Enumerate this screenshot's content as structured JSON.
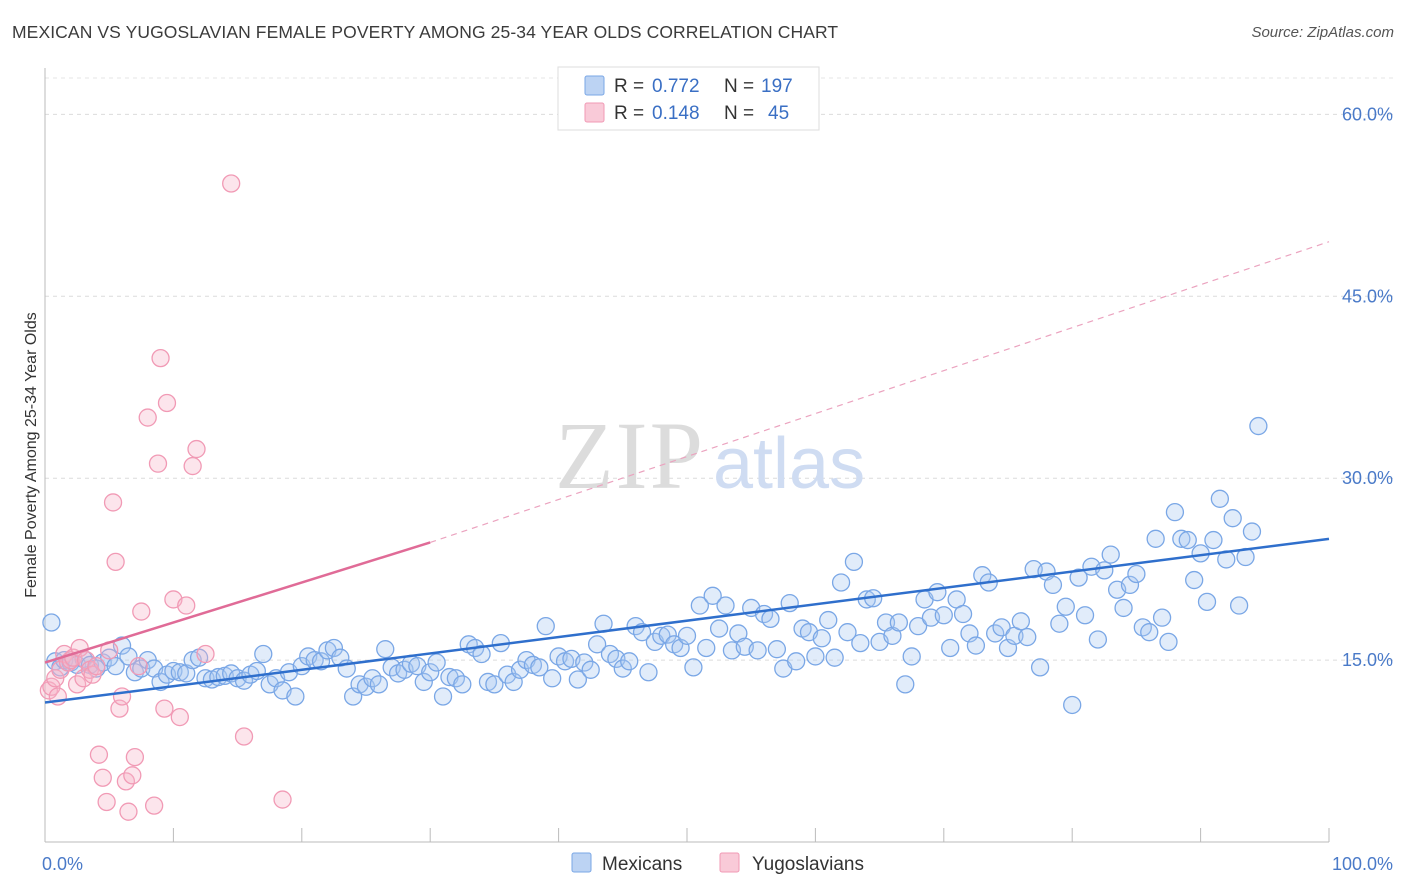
{
  "header": {
    "title": "MEXICAN VS YUGOSLAVIAN FEMALE POVERTY AMONG 25-34 YEAR OLDS CORRELATION CHART",
    "source": "Source: ZipAtlas.com"
  },
  "watermark": {
    "zip": "ZIP",
    "atlas": "atlas"
  },
  "legend": {
    "rows": [
      {
        "r_label": "R =",
        "r_value": "0.772",
        "n_label": "N =",
        "n_value": "197",
        "color": "#7aa7e6"
      },
      {
        "r_label": "R =",
        "r_value": "0.148",
        "n_label": "N =",
        "n_value": "45",
        "color": "#f19ab5"
      }
    ]
  },
  "bottom_legend": {
    "items": [
      {
        "label": "Mexicans",
        "color": "#7aa7e6"
      },
      {
        "label": "Yugoslavians",
        "color": "#f19ab5"
      }
    ]
  },
  "chart_data": {
    "type": "scatter",
    "title": "MEXICAN VS YUGOSLAVIAN FEMALE POVERTY AMONG 25-34 YEAR OLDS CORRELATION CHART",
    "xlabel": "",
    "ylabel": "Female Poverty Among 25-34 Year Olds",
    "xlim": [
      0,
      100
    ],
    "ylim": [
      0,
      63
    ],
    "x_tick_labels": [
      "0.0%",
      "100.0%"
    ],
    "y_ticks": [
      15,
      30,
      45,
      60
    ],
    "y_tick_labels": [
      "15.0%",
      "30.0%",
      "45.0%",
      "60.0%"
    ],
    "grid": true,
    "legend_placement": "top-center",
    "series": [
      {
        "name": "Mexicans",
        "color": "#7aa7e6",
        "r": 0.772,
        "n": 197,
        "trend": {
          "x": [
            0,
            100
          ],
          "y": [
            11.5,
            25.0
          ]
        },
        "points": [
          [
            0.5,
            18.1
          ],
          [
            0.8,
            14.9
          ],
          [
            1.2,
            14.4
          ],
          [
            1.5,
            15.0
          ],
          [
            2.0,
            14.8
          ],
          [
            2.5,
            14.6
          ],
          [
            3.0,
            15.1
          ],
          [
            3.5,
            14.6
          ],
          [
            4.0,
            14.3
          ],
          [
            4.5,
            14.8
          ],
          [
            5.0,
            15.2
          ],
          [
            5.5,
            14.5
          ],
          [
            6.0,
            16.2
          ],
          [
            6.5,
            15.3
          ],
          [
            7.0,
            14.0
          ],
          [
            7.5,
            14.3
          ],
          [
            8.0,
            15.0
          ],
          [
            8.5,
            14.3
          ],
          [
            9.0,
            13.2
          ],
          [
            9.5,
            13.8
          ],
          [
            10.0,
            14.1
          ],
          [
            10.5,
            14.0
          ],
          [
            11.0,
            13.9
          ],
          [
            11.5,
            15.0
          ],
          [
            12.0,
            15.2
          ],
          [
            12.5,
            13.5
          ],
          [
            13.0,
            13.4
          ],
          [
            13.5,
            13.6
          ],
          [
            14.0,
            13.7
          ],
          [
            14.5,
            13.9
          ],
          [
            15.0,
            13.5
          ],
          [
            15.5,
            13.3
          ],
          [
            16.0,
            13.8
          ],
          [
            16.5,
            14.1
          ],
          [
            17.0,
            15.5
          ],
          [
            17.5,
            13.0
          ],
          [
            18.0,
            13.5
          ],
          [
            18.5,
            12.5
          ],
          [
            19.0,
            14.0
          ],
          [
            19.5,
            12.0
          ],
          [
            20.0,
            14.5
          ],
          [
            20.5,
            15.3
          ],
          [
            21.0,
            15.0
          ],
          [
            21.5,
            14.9
          ],
          [
            22.0,
            15.8
          ],
          [
            22.5,
            16.0
          ],
          [
            23.0,
            15.2
          ],
          [
            23.5,
            14.3
          ],
          [
            24.0,
            12.0
          ],
          [
            24.5,
            13.0
          ],
          [
            25.0,
            12.8
          ],
          [
            25.5,
            13.5
          ],
          [
            26.0,
            13.0
          ],
          [
            26.5,
            15.9
          ],
          [
            27.0,
            14.4
          ],
          [
            27.5,
            13.9
          ],
          [
            28.0,
            14.2
          ],
          [
            28.5,
            14.7
          ],
          [
            29.0,
            14.5
          ],
          [
            29.5,
            13.2
          ],
          [
            30.0,
            14.0
          ],
          [
            30.5,
            14.8
          ],
          [
            31.0,
            12.0
          ],
          [
            31.5,
            13.6
          ],
          [
            32.0,
            13.5
          ],
          [
            32.5,
            13.0
          ],
          [
            33.0,
            16.3
          ],
          [
            33.5,
            16.0
          ],
          [
            34.0,
            15.5
          ],
          [
            34.5,
            13.2
          ],
          [
            35.0,
            13.0
          ],
          [
            35.5,
            16.4
          ],
          [
            36.0,
            13.8
          ],
          [
            36.5,
            13.2
          ],
          [
            37.0,
            14.2
          ],
          [
            37.5,
            15.0
          ],
          [
            38.0,
            14.6
          ],
          [
            38.5,
            14.4
          ],
          [
            39.0,
            17.8
          ],
          [
            39.5,
            13.5
          ],
          [
            40.0,
            15.3
          ],
          [
            40.5,
            14.9
          ],
          [
            41.0,
            15.1
          ],
          [
            41.5,
            13.4
          ],
          [
            42.0,
            14.8
          ],
          [
            42.5,
            14.2
          ],
          [
            43.0,
            16.3
          ],
          [
            43.5,
            18.0
          ],
          [
            44.0,
            15.5
          ],
          [
            44.5,
            15.1
          ],
          [
            45.0,
            14.3
          ],
          [
            45.5,
            14.9
          ],
          [
            46.0,
            17.8
          ],
          [
            46.5,
            17.3
          ],
          [
            47.0,
            14.0
          ],
          [
            47.5,
            16.5
          ],
          [
            48.0,
            17.0
          ],
          [
            48.5,
            17.1
          ],
          [
            49.0,
            16.3
          ],
          [
            49.5,
            16.0
          ],
          [
            50.0,
            17.0
          ],
          [
            50.5,
            14.4
          ],
          [
            51.0,
            19.5
          ],
          [
            51.5,
            16.0
          ],
          [
            52.0,
            20.3
          ],
          [
            52.5,
            17.6
          ],
          [
            53.0,
            19.5
          ],
          [
            53.5,
            15.8
          ],
          [
            54.0,
            17.2
          ],
          [
            54.5,
            16.1
          ],
          [
            55.0,
            19.3
          ],
          [
            55.5,
            15.8
          ],
          [
            56.0,
            18.8
          ],
          [
            56.5,
            18.4
          ],
          [
            57.0,
            15.9
          ],
          [
            57.5,
            14.3
          ],
          [
            58.0,
            19.7
          ],
          [
            58.5,
            14.9
          ],
          [
            59.0,
            17.6
          ],
          [
            59.5,
            17.3
          ],
          [
            60.0,
            15.3
          ],
          [
            60.5,
            16.8
          ],
          [
            61.0,
            18.3
          ],
          [
            61.5,
            15.2
          ],
          [
            62.0,
            21.4
          ],
          [
            62.5,
            17.3
          ],
          [
            63.0,
            23.1
          ],
          [
            63.5,
            16.4
          ],
          [
            64.0,
            20.0
          ],
          [
            64.5,
            20.1
          ],
          [
            65.0,
            16.5
          ],
          [
            65.5,
            18.1
          ],
          [
            66.0,
            17.0
          ],
          [
            66.5,
            18.1
          ],
          [
            67.0,
            13.0
          ],
          [
            67.5,
            15.3
          ],
          [
            68.0,
            17.8
          ],
          [
            68.5,
            20.0
          ],
          [
            69.0,
            18.5
          ],
          [
            69.5,
            20.6
          ],
          [
            70.0,
            18.7
          ],
          [
            70.5,
            16.0
          ],
          [
            71.0,
            20.0
          ],
          [
            71.5,
            18.8
          ],
          [
            72.0,
            17.2
          ],
          [
            72.5,
            16.2
          ],
          [
            73.0,
            22.0
          ],
          [
            73.5,
            21.4
          ],
          [
            74.0,
            17.2
          ],
          [
            74.5,
            17.7
          ],
          [
            75.0,
            16.0
          ],
          [
            75.5,
            17.0
          ],
          [
            76.0,
            18.2
          ],
          [
            76.5,
            16.9
          ],
          [
            77.0,
            22.5
          ],
          [
            77.5,
            14.4
          ],
          [
            78.0,
            22.3
          ],
          [
            78.5,
            21.2
          ],
          [
            79.0,
            18.0
          ],
          [
            79.5,
            19.4
          ],
          [
            80.0,
            11.3
          ],
          [
            80.5,
            21.8
          ],
          [
            81.0,
            18.7
          ],
          [
            81.5,
            22.7
          ],
          [
            82.0,
            16.7
          ],
          [
            82.5,
            22.4
          ],
          [
            83.0,
            23.7
          ],
          [
            83.5,
            20.8
          ],
          [
            84.0,
            19.3
          ],
          [
            84.5,
            21.2
          ],
          [
            85.0,
            22.1
          ],
          [
            85.5,
            17.7
          ],
          [
            86.0,
            17.3
          ],
          [
            86.5,
            25.0
          ],
          [
            87.0,
            18.5
          ],
          [
            87.5,
            16.5
          ],
          [
            88.0,
            27.2
          ],
          [
            88.5,
            25.0
          ],
          [
            89.0,
            24.9
          ],
          [
            89.5,
            21.6
          ],
          [
            90.0,
            23.8
          ],
          [
            90.5,
            19.8
          ],
          [
            91.0,
            24.9
          ],
          [
            91.5,
            28.3
          ],
          [
            92.0,
            23.3
          ],
          [
            92.5,
            26.7
          ],
          [
            93.0,
            19.5
          ],
          [
            93.5,
            23.5
          ],
          [
            94.0,
            25.6
          ],
          [
            94.5,
            34.3
          ]
        ]
      },
      {
        "name": "Yugoslavians",
        "color": "#f19ab5",
        "r": 0.148,
        "n": 45,
        "trend": {
          "x": [
            0,
            30
          ],
          "y": [
            14.8,
            24.7
          ]
        },
        "trend_dashed": {
          "x": [
            30,
            100
          ],
          "y": [
            24.7,
            49.5
          ]
        },
        "points": [
          [
            0.3,
            12.5
          ],
          [
            0.5,
            12.8
          ],
          [
            0.8,
            13.5
          ],
          [
            1.0,
            12.0
          ],
          [
            1.2,
            14.2
          ],
          [
            1.5,
            15.5
          ],
          [
            1.8,
            14.8
          ],
          [
            2.0,
            15.0
          ],
          [
            2.2,
            15.2
          ],
          [
            2.5,
            13.0
          ],
          [
            2.7,
            16.0
          ],
          [
            3.0,
            13.5
          ],
          [
            3.2,
            15.0
          ],
          [
            3.5,
            14.2
          ],
          [
            3.7,
            13.8
          ],
          [
            4.0,
            14.5
          ],
          [
            4.2,
            7.2
          ],
          [
            4.5,
            5.3
          ],
          [
            4.8,
            3.3
          ],
          [
            5.0,
            15.8
          ],
          [
            5.3,
            28.0
          ],
          [
            5.5,
            23.1
          ],
          [
            5.8,
            11.0
          ],
          [
            6.0,
            12.0
          ],
          [
            6.3,
            5.0
          ],
          [
            6.5,
            2.5
          ],
          [
            6.8,
            5.5
          ],
          [
            7.0,
            7.0
          ],
          [
            7.3,
            14.5
          ],
          [
            7.5,
            19.0
          ],
          [
            8.0,
            35.0
          ],
          [
            8.5,
            3.0
          ],
          [
            8.8,
            31.2
          ],
          [
            9.0,
            39.9
          ],
          [
            9.3,
            11.0
          ],
          [
            9.5,
            36.2
          ],
          [
            10.0,
            20.0
          ],
          [
            10.5,
            10.3
          ],
          [
            11.0,
            19.5
          ],
          [
            11.5,
            31.0
          ],
          [
            11.8,
            32.4
          ],
          [
            12.5,
            15.5
          ],
          [
            14.5,
            54.3
          ],
          [
            15.5,
            8.7
          ],
          [
            18.5,
            3.5
          ]
        ]
      }
    ]
  }
}
